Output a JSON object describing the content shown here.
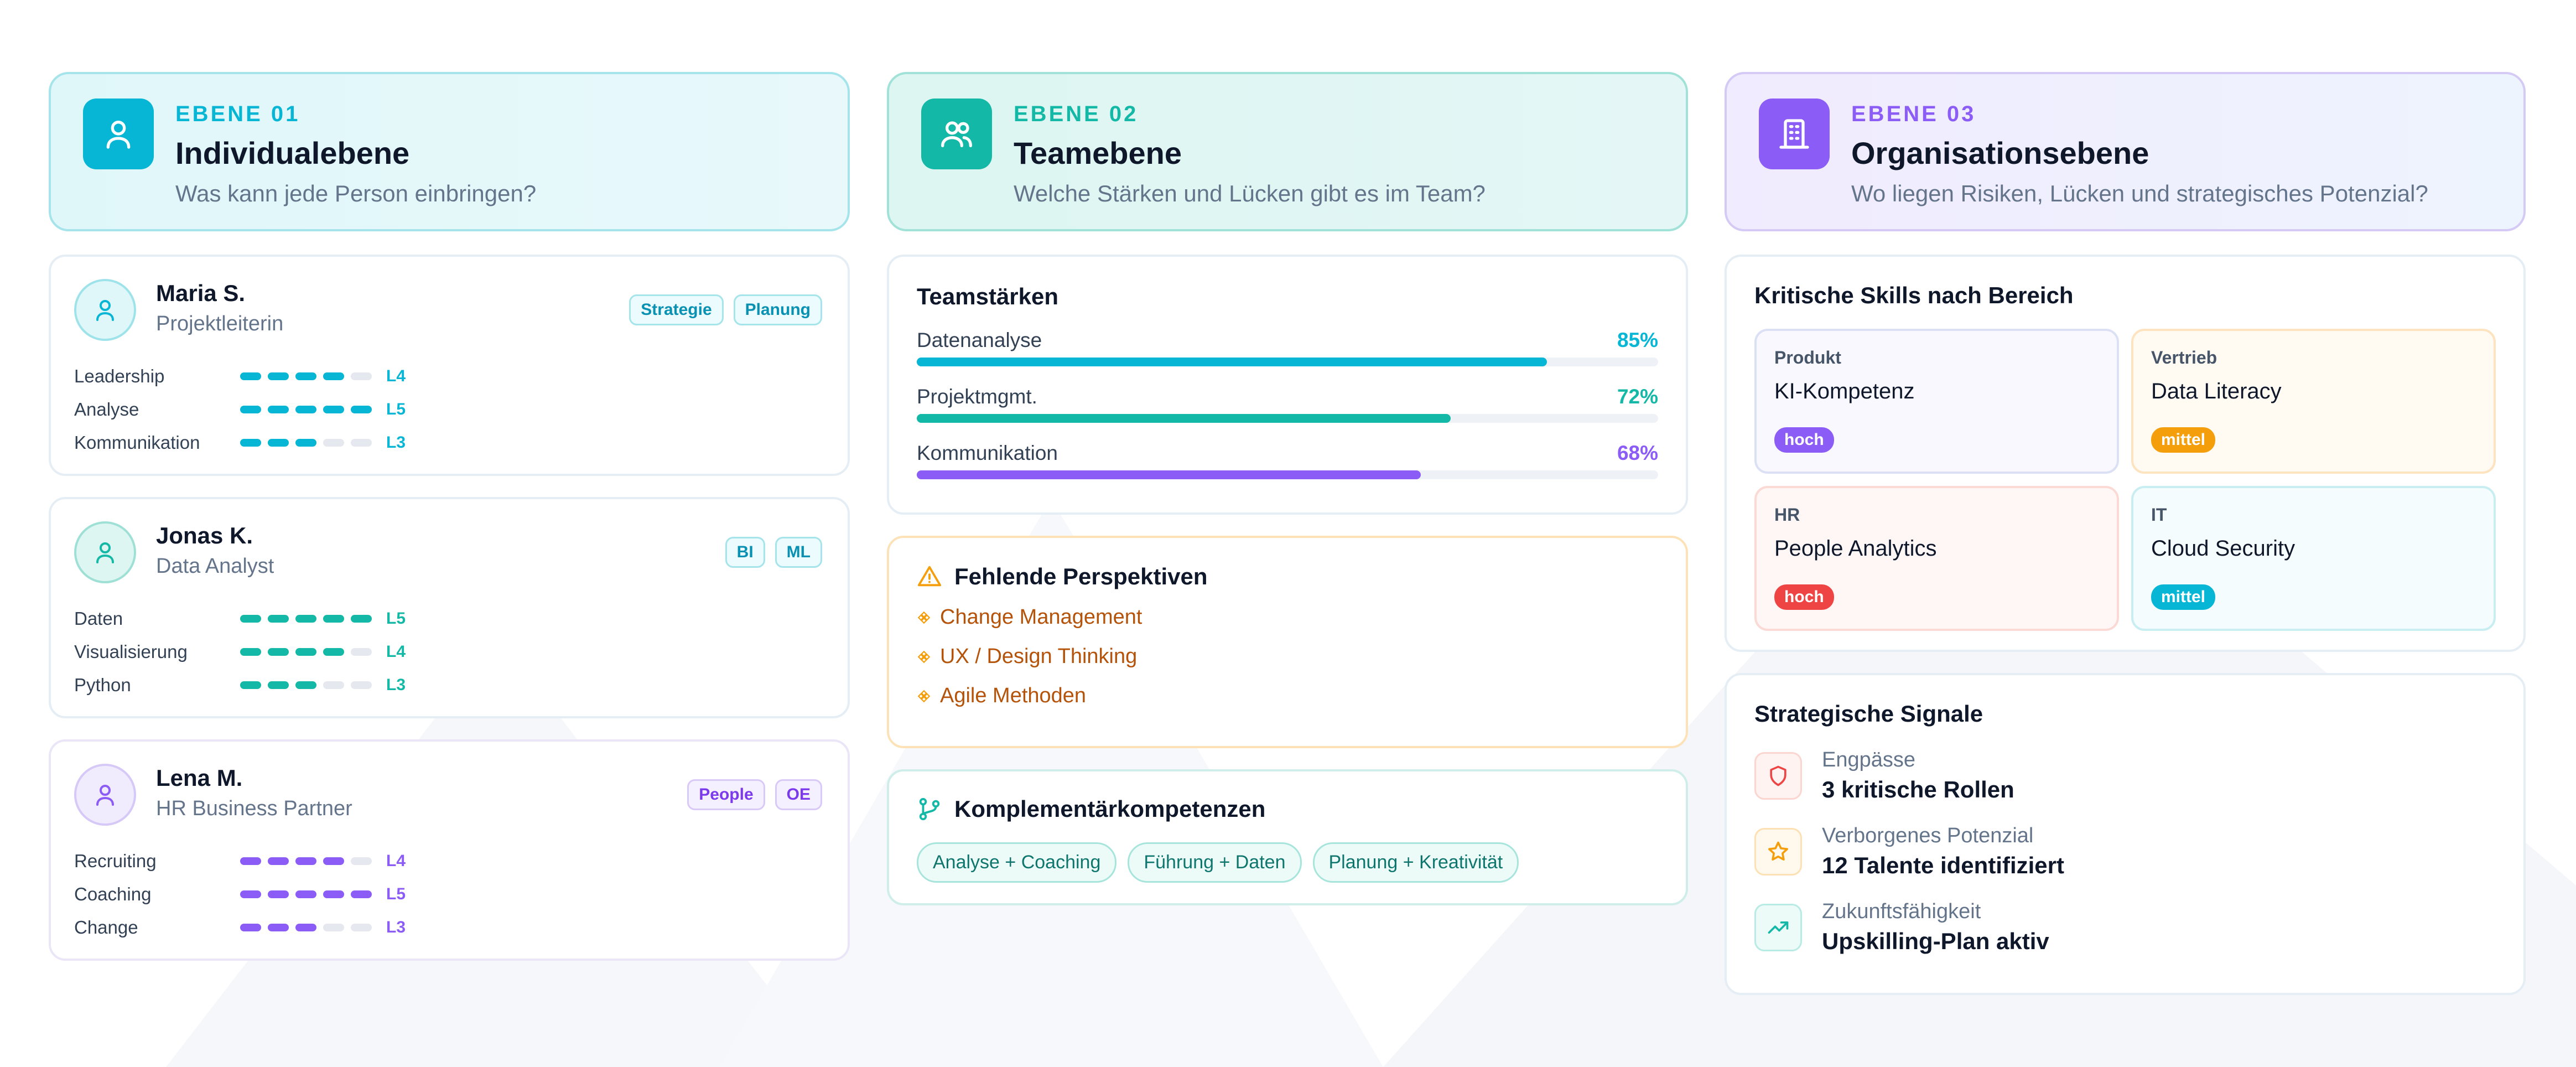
{
  "colors": {
    "teal": "#06b6d4",
    "green": "#14b8a6",
    "purple": "#8b5cf6",
    "orange": "#f59e0b",
    "red": "#ef4444",
    "cyan": "#06b6d4"
  },
  "levels": [
    {
      "eyebrow": "EBENE 01",
      "title": "Individualebene",
      "subtitle": "Was kann jede Person einbringen?",
      "icon": "user-icon"
    },
    {
      "eyebrow": "EBENE 02",
      "title": "Teamebene",
      "subtitle": "Welche Stärken und Lücken gibt es im Team?",
      "icon": "users-icon"
    },
    {
      "eyebrow": "EBENE 03",
      "title": "Organisationsebene",
      "subtitle": "Wo liegen Risiken, Lücken und strategisches Potenzial?",
      "icon": "building-icon"
    }
  ],
  "people": [
    {
      "name": "Maria S.",
      "role": "Projektleiterin",
      "tags": [
        "Strategie",
        "Planung"
      ],
      "skills": [
        {
          "name": "Leadership",
          "level": 4,
          "label": "L4"
        },
        {
          "name": "Analyse",
          "level": 5,
          "label": "L5"
        },
        {
          "name": "Kommunikation",
          "level": 3,
          "label": "L3"
        }
      ]
    },
    {
      "name": "Jonas K.",
      "role": "Data Analyst",
      "tags": [
        "BI",
        "ML"
      ],
      "skills": [
        {
          "name": "Daten",
          "level": 5,
          "label": "L5"
        },
        {
          "name": "Visualisierung",
          "level": 4,
          "label": "L4"
        },
        {
          "name": "Python",
          "level": 3,
          "label": "L3"
        }
      ]
    },
    {
      "name": "Lena M.",
      "role": "HR Business Partner",
      "tags": [
        "People",
        "OE"
      ],
      "skills": [
        {
          "name": "Recruiting",
          "level": 4,
          "label": "L4"
        },
        {
          "name": "Coaching",
          "level": 5,
          "label": "L5"
        },
        {
          "name": "Change",
          "level": 3,
          "label": "L3"
        }
      ]
    }
  ],
  "team_strengths": {
    "title": "Teamstärken",
    "items": [
      {
        "label": "Datenanalyse",
        "percent": 85,
        "percent_text": "85%"
      },
      {
        "label": "Projektmgmt.",
        "percent": 72,
        "percent_text": "72%"
      },
      {
        "label": "Kommunikation",
        "percent": 68,
        "percent_text": "68%"
      }
    ]
  },
  "missing": {
    "title": "Fehlende Perspektiven",
    "icon": "warning-icon",
    "items": [
      "Change Management",
      "UX / Design Thinking",
      "Agile Methoden"
    ]
  },
  "complementary": {
    "title": "Komplementärkompetenzen",
    "icon": "branch-icon",
    "pills": [
      "Analyse + Coaching",
      "Führung + Daten",
      "Planung + Kreativität"
    ]
  },
  "critical": {
    "title": "Kritische Skills nach Bereich",
    "cells": [
      {
        "area": "Produkt",
        "skill": "KI-Kompetenz",
        "badge": "hoch"
      },
      {
        "area": "Vertrieb",
        "skill": "Data Literacy",
        "badge": "mittel"
      },
      {
        "area": "HR",
        "skill": "People Analytics",
        "badge": "hoch"
      },
      {
        "area": "IT",
        "skill": "Cloud Security",
        "badge": "mittel"
      }
    ]
  },
  "signals": {
    "title": "Strategische Signale",
    "items": [
      {
        "label": "Engpässe",
        "value": "3 kritische Rollen",
        "icon": "shield-icon"
      },
      {
        "label": "Verborgenes Potenzial",
        "value": "12 Talente identifiziert",
        "icon": "star-icon"
      },
      {
        "label": "Zukunftsfähigkeit",
        "value": "Upskilling-Plan aktiv",
        "icon": "trend-up-icon"
      }
    ]
  }
}
